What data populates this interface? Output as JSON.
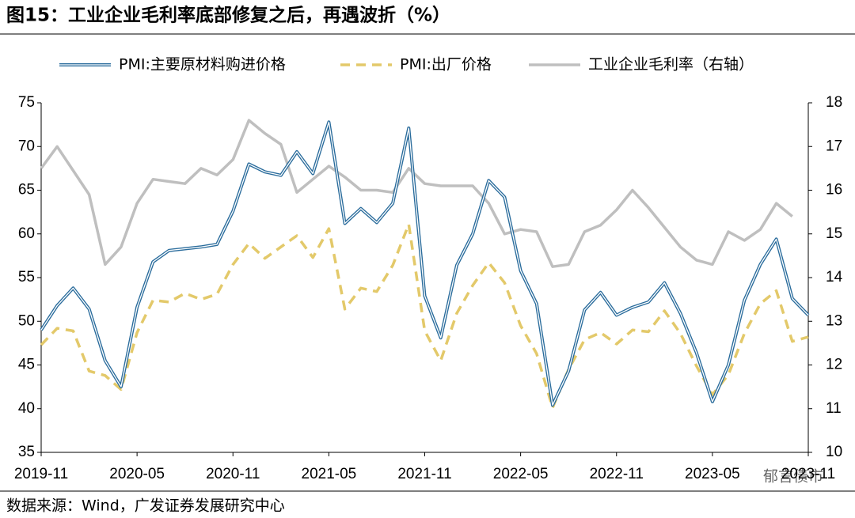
{
  "chart_data": {
    "type": "line",
    "title": "图15：工业企业毛利率底部修复之后，再遇波折（%）",
    "source": "数据来源：Wind，广发证券发展研究中心",
    "watermark": "郁言债市",
    "categories": [
      "2019-11",
      null,
      null,
      null,
      null,
      null,
      "2020-05",
      null,
      null,
      null,
      null,
      null,
      "2020-11",
      null,
      null,
      null,
      null,
      null,
      "2021-05",
      null,
      null,
      null,
      null,
      null,
      "2021-11",
      null,
      null,
      null,
      null,
      null,
      "2022-05",
      null,
      null,
      null,
      null,
      null,
      "2022-11",
      null,
      null,
      null,
      null,
      null,
      "2023-05",
      null,
      null,
      null,
      null,
      null,
      "2023-11"
    ],
    "ylim": [
      35,
      75
    ],
    "yticks": [
      35,
      40,
      45,
      50,
      55,
      60,
      65,
      70,
      75
    ],
    "y2lim": [
      10,
      18
    ],
    "y2ticks": [
      10,
      11,
      12,
      13,
      14,
      15,
      16,
      17,
      18
    ],
    "legend": "top",
    "series": [
      {
        "name": "PMI:主要原材料购进价格",
        "color": "#2a6c9c",
        "style": "double",
        "values": [
          49.0,
          51.8,
          53.8,
          51.4,
          45.5,
          42.5,
          51.6,
          56.8,
          58.1,
          58.3,
          58.5,
          58.8,
          62.6,
          68.0,
          67.1,
          66.7,
          69.4,
          66.9,
          72.8,
          61.2,
          62.9,
          61.3,
          63.5,
          72.1,
          52.9,
          48.1,
          56.4,
          60.0,
          66.1,
          64.2,
          55.8,
          52.0,
          40.4,
          44.3,
          51.3,
          53.3,
          50.7,
          51.6,
          52.2,
          54.4,
          50.9,
          46.4,
          40.8,
          45.0,
          52.4,
          56.5,
          59.4,
          52.6,
          50.7
        ]
      },
      {
        "name": "PMI:出厂价格",
        "color": "#e3c96a",
        "style": "dashed",
        "values": [
          47.3,
          49.2,
          48.9,
          44.3,
          43.8,
          42.2,
          48.7,
          52.4,
          52.2,
          53.2,
          52.5,
          53.1,
          56.5,
          58.9,
          57.2,
          58.5,
          59.8,
          57.3,
          60.6,
          51.4,
          53.8,
          53.4,
          56.4,
          61.1,
          48.9,
          45.5,
          50.9,
          54.1,
          56.7,
          54.4,
          49.5,
          46.3,
          40.1,
          44.5,
          47.9,
          48.7,
          47.4,
          49.0,
          48.8,
          51.2,
          48.6,
          44.9,
          41.6,
          43.9,
          48.6,
          52.0,
          53.5,
          47.7,
          48.2
        ]
      },
      {
        "name": "工业企业毛利率（右轴）",
        "color": "#bfbfbf",
        "style": "solid",
        "axis": "y2",
        "values": [
          16.5,
          17.0,
          16.45,
          15.9,
          14.3,
          14.7,
          15.7,
          16.25,
          16.2,
          16.15,
          16.5,
          16.35,
          16.7,
          17.6,
          17.3,
          17.05,
          15.95,
          16.25,
          16.55,
          16.3,
          16.0,
          16.0,
          15.95,
          16.5,
          16.15,
          16.1,
          16.1,
          16.1,
          15.7,
          15.0,
          15.1,
          15.05,
          14.25,
          14.3,
          15.05,
          15.2,
          15.55,
          16.0,
          15.6,
          15.15,
          14.7,
          14.4,
          14.3,
          15.05,
          14.85,
          15.1,
          15.7,
          15.4,
          null
        ]
      }
    ]
  }
}
